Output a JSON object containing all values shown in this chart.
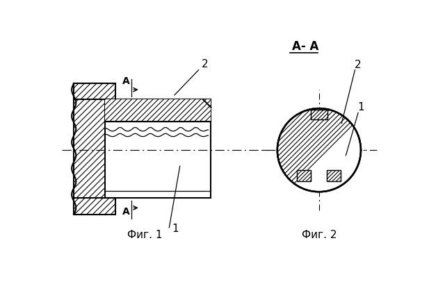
{
  "bg_color": "#ffffff",
  "fig1_label": "Фиг. 1",
  "fig2_label": "Фиг. 2",
  "section_label": "А- А",
  "label1": "1",
  "label2": "2",
  "labelA": "А",
  "line_color": "#000000"
}
